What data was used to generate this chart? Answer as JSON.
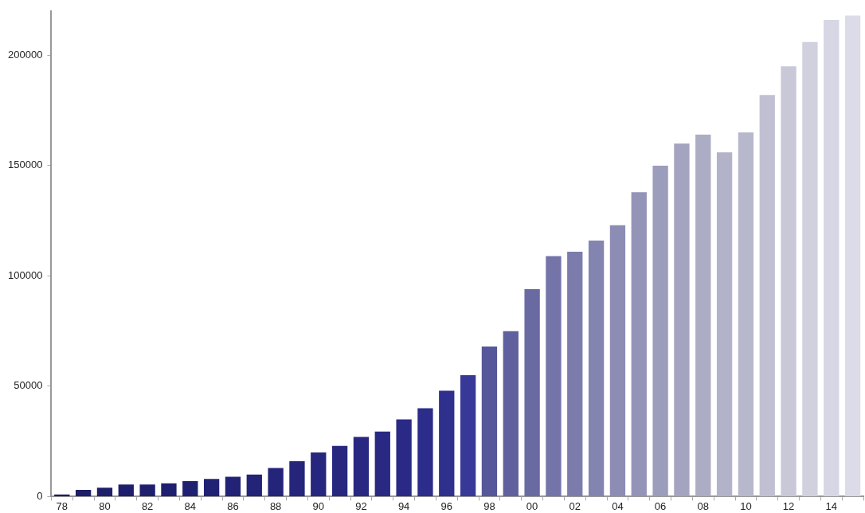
{
  "chart_data": {
    "type": "bar",
    "categories": [
      "78",
      null,
      "80",
      null,
      "82",
      null,
      "84",
      null,
      "86",
      null,
      "88",
      null,
      "90",
      null,
      "92",
      null,
      "94",
      null,
      "96",
      null,
      "98",
      null,
      "00",
      null,
      "02",
      null,
      "04",
      null,
      "06",
      null,
      "08",
      null,
      "10",
      null,
      "12",
      null,
      "14",
      null
    ],
    "values": [
      1000,
      3000,
      4000,
      5500,
      5500,
      6000,
      7000,
      8000,
      9000,
      10000,
      13000,
      16000,
      20000,
      23000,
      27000,
      29500,
      35000,
      40000,
      48000,
      55000,
      68000,
      75000,
      94000,
      109000,
      111000,
      116000,
      123000,
      138000,
      150000,
      160000,
      164000,
      156000,
      165000,
      182000,
      195000,
      206000,
      216000,
      218000
    ],
    "colors": [
      "#1c1c66",
      "#1d1d68",
      "#1e1e6a",
      "#1e1e6c",
      "#1f1f6e",
      "#1f1f70",
      "#202072",
      "#212174",
      "#222276",
      "#232378",
      "#24247a",
      "#25257c",
      "#26267e",
      "#272780",
      "#282882",
      "#292984",
      "#2a2a86",
      "#2c2c8a",
      "#2f2f8e",
      "#383898",
      "#56569a",
      "#60609e",
      "#6a6aa2",
      "#7474a8",
      "#7c7cac",
      "#8484b0",
      "#8c8cb4",
      "#9494b8",
      "#9c9cbc",
      "#a4a4c0",
      "#acacc4",
      "#b2b2c8",
      "#b8b8cc",
      "#c0c0d2",
      "#c8c8d8",
      "#d0d0de",
      "#d6d6e4",
      "#dcdce8"
    ],
    "ylim": [
      0,
      220000
    ],
    "yticks": [
      0,
      50000,
      100000,
      150000,
      200000
    ],
    "grid": false,
    "legend": false
  }
}
